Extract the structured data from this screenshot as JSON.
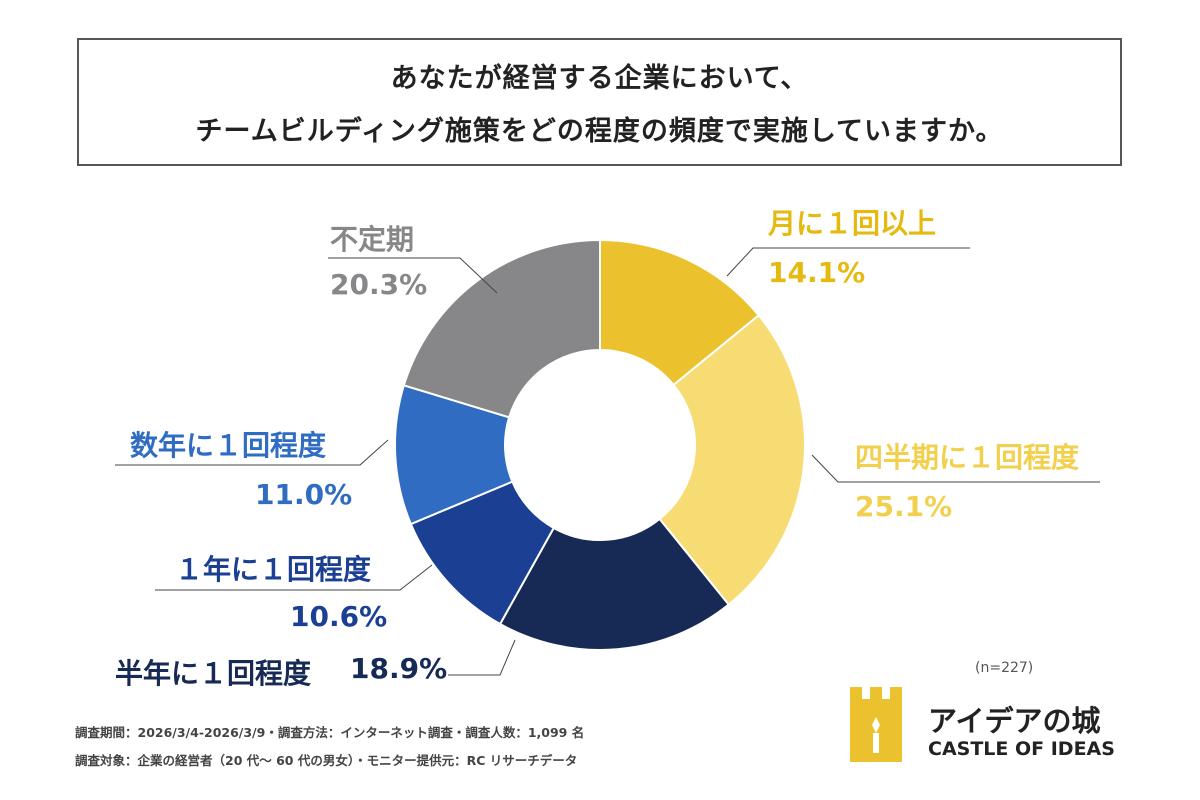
{
  "title": {
    "line1": "あなたが経営する企業において、",
    "line2": "チームビルディング施策をどの程度の頻度で実施していますか。"
  },
  "chart_data": {
    "type": "pie",
    "donut": true,
    "title": "あなたが経営する企業において、チームビルディング施策をどの程度の頻度で実施していますか。",
    "categories": [
      "月に１回以上",
      "四半期に１回程度",
      "半年に１回程度",
      "１年に１回程度",
      "数年に１回程度",
      "不定期"
    ],
    "values": [
      14.1,
      25.1,
      18.9,
      10.6,
      11.0,
      20.3
    ],
    "value_labels": [
      "14.1%",
      "25.1%",
      "18.9%",
      "10.6%",
      "11.0%",
      "20.3%"
    ],
    "colors": [
      "#EBC22E",
      "#F6DC72",
      "#172A55",
      "#1B3F92",
      "#2F6CC2",
      "#87878A"
    ],
    "label_colors": [
      "#E6B90F",
      "#F2D04E",
      "#172A55",
      "#1B3F92",
      "#2F6CC2",
      "#87878A"
    ],
    "sample_size": "(n=227)"
  },
  "footer": {
    "line1": "調査期間：2026/3/4-2026/3/9・調査方法：インターネット調査・調査人数：1,099 名",
    "line2": "調査対象：企業の経営者（20 代～ 60 代の男女）・モニター提供元：RC リサーチデータ"
  },
  "logo": {
    "jp": "アイデアの城",
    "en": "CASTLE OF IDEAS",
    "color": "#EBC22E"
  }
}
